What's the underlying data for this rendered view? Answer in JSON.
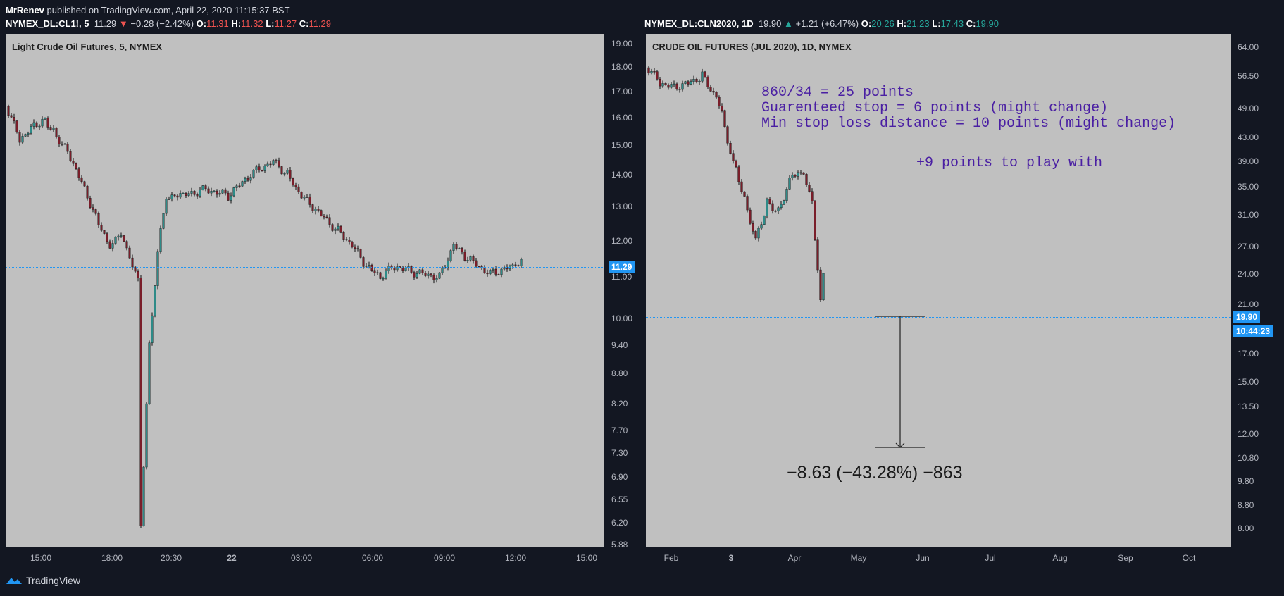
{
  "publisher": {
    "author": "MrRenev",
    "text": "published on TradingView.com, April 22, 2020 11:15:37 BST"
  },
  "left": {
    "symbol": "NYMEX_DL:CL1!, 5",
    "last": "11.29",
    "change": "−0.28 (−2.42%)",
    "o": "11.31",
    "h": "11.32",
    "l": "11.27",
    "c": "11.29",
    "label": "Light Crude Oil Futures, 5, NYMEX",
    "y_ticks": [
      "19.00",
      "18.00",
      "17.00",
      "16.00",
      "15.00",
      "14.00",
      "13.00",
      "12.00",
      "11.00",
      "10.00",
      "9.40",
      "8.80",
      "8.20",
      "7.70",
      "7.30",
      "6.90",
      "6.55",
      "6.20",
      "5.88"
    ],
    "x_ticks": [
      "15:00",
      "18:00",
      "20:30",
      "22",
      "03:00",
      "06:00",
      "09:00",
      "12:00",
      "15:00"
    ],
    "price_tag": "11.29",
    "price_line_color": "#2196f3"
  },
  "right": {
    "symbol": "NYMEX_DL:CLN2020, 1D",
    "last": "19.90",
    "change": "+1.21 (+6.47%)",
    "o": "20.26",
    "h": "21.23",
    "l": "17.43",
    "c": "19.90",
    "label": "CRUDE OIL FUTURES (JUL 2020), 1D, NYMEX",
    "y_ticks": [
      "64.00",
      "56.50",
      "49.00",
      "43.00",
      "39.00",
      "35.00",
      "31.00",
      "27.00",
      "24.00",
      "21.00",
      "17.00",
      "15.00",
      "13.50",
      "12.00",
      "10.80",
      "9.80",
      "8.80",
      "8.00"
    ],
    "x_ticks": [
      "Feb",
      "3",
      "Apr",
      "May",
      "Jun",
      "Jul",
      "Aug",
      "Sep",
      "Oct"
    ],
    "price_tag": "19.90",
    "countdown_tag": "10:44:23",
    "notes": {
      "line1": "860/34 = 25 points",
      "line2": "Guarenteed stop = 6 points (might change)",
      "line3": "Min stop loss distance = 10 points (might change)",
      "line4": "+9 points to play with"
    },
    "measure_text": "−8.63 (−43.28%) −863"
  },
  "footer": {
    "brand": "TradingView"
  },
  "colors": {
    "bg": "#131722",
    "chart_bg": "#c0c0c0",
    "up": "#26a69a",
    "down": "#ef5350",
    "note": "#4a1fa3",
    "accent": "#2196f3"
  }
}
